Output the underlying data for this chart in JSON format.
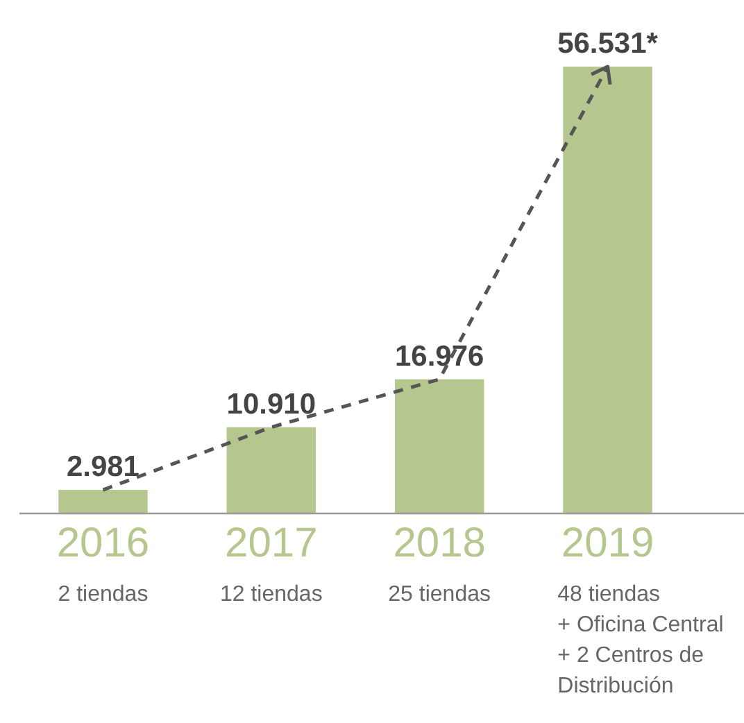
{
  "chart_data": {
    "type": "bar",
    "categories": [
      "2016",
      "2017",
      "2018",
      "2019"
    ],
    "series": [
      {
        "color": "#b5c68e",
        "values": [
          2981,
          10910,
          16976,
          56531
        ],
        "value_labels": [
          "2.981",
          "10.910",
          "16.976",
          "56.531*"
        ]
      }
    ],
    "annotations": [
      "2 tiendas",
      "12 tiendas",
      "25 tiendas",
      "48 tiendas\n+ Oficina Central\n+ 2 Centros de\nDistribución"
    ]
  }
}
